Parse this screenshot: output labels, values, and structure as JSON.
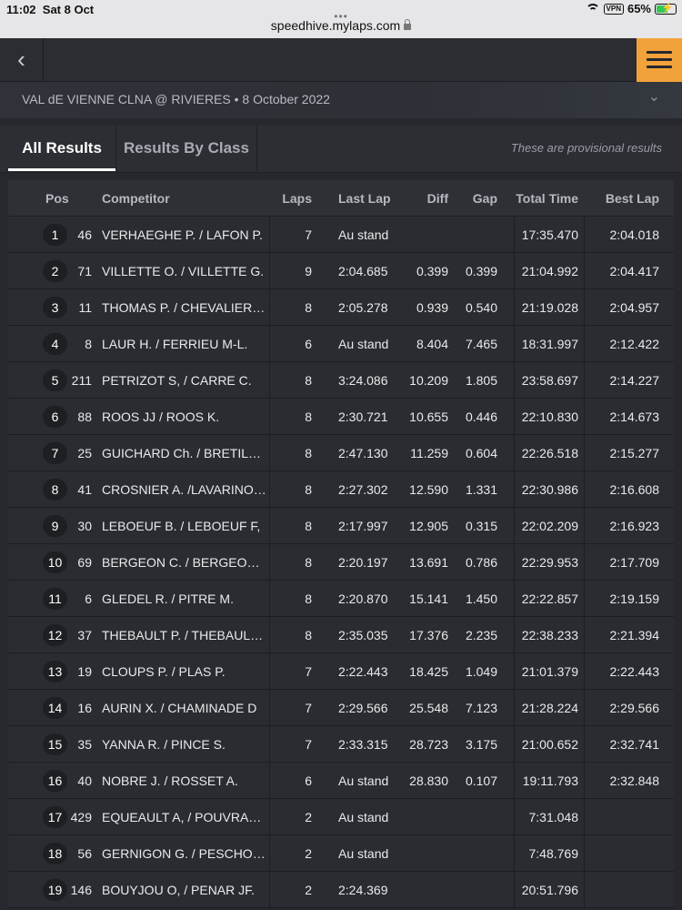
{
  "status": {
    "time": "11:02",
    "date": "Sat 8 Oct",
    "vpn": "VPN",
    "battery": "65%",
    "battery_level": 0.65
  },
  "browser": {
    "url": "speedhive.mylaps.com",
    "dots": "•••"
  },
  "topbar": {
    "back_glyph": "‹"
  },
  "event": {
    "label": "VAL dE VIENNE CLNA @ RIVIERES • 8 October 2022",
    "chevron": "⌄"
  },
  "tabs": {
    "all": "All Results",
    "by_class": "Results By Class",
    "notice": "These are provisional results"
  },
  "table": {
    "headers": {
      "pos": "Pos",
      "competitor": "Competitor",
      "laps": "Laps",
      "last_lap": "Last Lap",
      "diff": "Diff",
      "gap": "Gap",
      "total_time": "Total Time",
      "best_lap": "Best Lap"
    },
    "rows": [
      {
        "pos": "1",
        "num": "46",
        "competitor": "VERHAEGHE P. / LAFON P.",
        "laps": "7",
        "last": "Au stand",
        "diff": "",
        "gap": "",
        "total": "17:35.470",
        "best": "2:04.018"
      },
      {
        "pos": "2",
        "num": "71",
        "competitor": "VILLETTE O. / VILLETTE G.",
        "laps": "9",
        "last": "2:04.685",
        "diff": "0.399",
        "gap": "0.399",
        "total": "21:04.992",
        "best": "2:04.417"
      },
      {
        "pos": "3",
        "num": "11",
        "competitor": "THOMAS P. / CHEVALIER…",
        "laps": "8",
        "last": "2:05.278",
        "diff": "0.939",
        "gap": "0.540",
        "total": "21:19.028",
        "best": "2:04.957"
      },
      {
        "pos": "4",
        "num": "8",
        "competitor": "LAUR H. / FERRIEU M-L.",
        "laps": "6",
        "last": "Au stand",
        "diff": "8.404",
        "gap": "7.465",
        "total": "18:31.997",
        "best": "2:12.422"
      },
      {
        "pos": "5",
        "num": "211",
        "competitor": "PETRIZOT S, / CARRE C.",
        "laps": "8",
        "last": "3:24.086",
        "diff": "10.209",
        "gap": "1.805",
        "total": "23:58.697",
        "best": "2:14.227"
      },
      {
        "pos": "6",
        "num": "88",
        "competitor": "ROOS JJ / ROOS K.",
        "laps": "8",
        "last": "2:30.721",
        "diff": "10.655",
        "gap": "0.446",
        "total": "22:10.830",
        "best": "2:14.673"
      },
      {
        "pos": "7",
        "num": "25",
        "competitor": "GUICHARD Ch. / BRETIL…",
        "laps": "8",
        "last": "2:47.130",
        "diff": "11.259",
        "gap": "0.604",
        "total": "22:26.518",
        "best": "2:15.277"
      },
      {
        "pos": "8",
        "num": "41",
        "competitor": "CROSNIER A. /LAVARINO…",
        "laps": "8",
        "last": "2:27.302",
        "diff": "12.590",
        "gap": "1.331",
        "total": "22:30.986",
        "best": "2:16.608"
      },
      {
        "pos": "9",
        "num": "30",
        "competitor": "LEBOEUF B. / LEBOEUF F,",
        "laps": "8",
        "last": "2:17.997",
        "diff": "12.905",
        "gap": "0.315",
        "total": "22:02.209",
        "best": "2:16.923"
      },
      {
        "pos": "10",
        "num": "69",
        "competitor": "BERGEON C. / BERGEO…",
        "laps": "8",
        "last": "2:20.197",
        "diff": "13.691",
        "gap": "0.786",
        "total": "22:29.953",
        "best": "2:17.709"
      },
      {
        "pos": "11",
        "num": "6",
        "competitor": "GLEDEL R. / PITRE M.",
        "laps": "8",
        "last": "2:20.870",
        "diff": "15.141",
        "gap": "1.450",
        "total": "22:22.857",
        "best": "2:19.159"
      },
      {
        "pos": "12",
        "num": "37",
        "competitor": "THEBAULT P. / THEBAUL…",
        "laps": "8",
        "last": "2:35.035",
        "diff": "17.376",
        "gap": "2.235",
        "total": "22:38.233",
        "best": "2:21.394"
      },
      {
        "pos": "13",
        "num": "19",
        "competitor": "CLOUPS P. / PLAS P.",
        "laps": "7",
        "last": "2:22.443",
        "diff": "18.425",
        "gap": "1.049",
        "total": "21:01.379",
        "best": "2:22.443"
      },
      {
        "pos": "14",
        "num": "16",
        "competitor": "AURIN X. / CHAMINADE D",
        "laps": "7",
        "last": "2:29.566",
        "diff": "25.548",
        "gap": "7.123",
        "total": "21:28.224",
        "best": "2:29.566"
      },
      {
        "pos": "15",
        "num": "35",
        "competitor": "YANNA R. / PINCE S.",
        "laps": "7",
        "last": "2:33.315",
        "diff": "28.723",
        "gap": "3.175",
        "total": "21:00.652",
        "best": "2:32.741"
      },
      {
        "pos": "16",
        "num": "40",
        "competitor": "NOBRE J. / ROSSET A.",
        "laps": "6",
        "last": "Au stand",
        "diff": "28.830",
        "gap": "0.107",
        "total": "19:11.793",
        "best": "2:32.848"
      },
      {
        "pos": "17",
        "num": "429",
        "competitor": "EQUEAULT A, / POUVRA…",
        "laps": "2",
        "last": "Au stand",
        "diff": "",
        "gap": "",
        "total": "7:31.048",
        "best": ""
      },
      {
        "pos": "18",
        "num": "56",
        "competitor": "GERNIGON G. / PESCHO…",
        "laps": "2",
        "last": "Au stand",
        "diff": "",
        "gap": "",
        "total": "7:48.769",
        "best": ""
      },
      {
        "pos": "19",
        "num": "146",
        "competitor": "BOUYJOU O, / PENAR JF.",
        "laps": "2",
        "last": "2:24.369",
        "diff": "",
        "gap": "",
        "total": "20:51.796",
        "best": ""
      }
    ]
  }
}
